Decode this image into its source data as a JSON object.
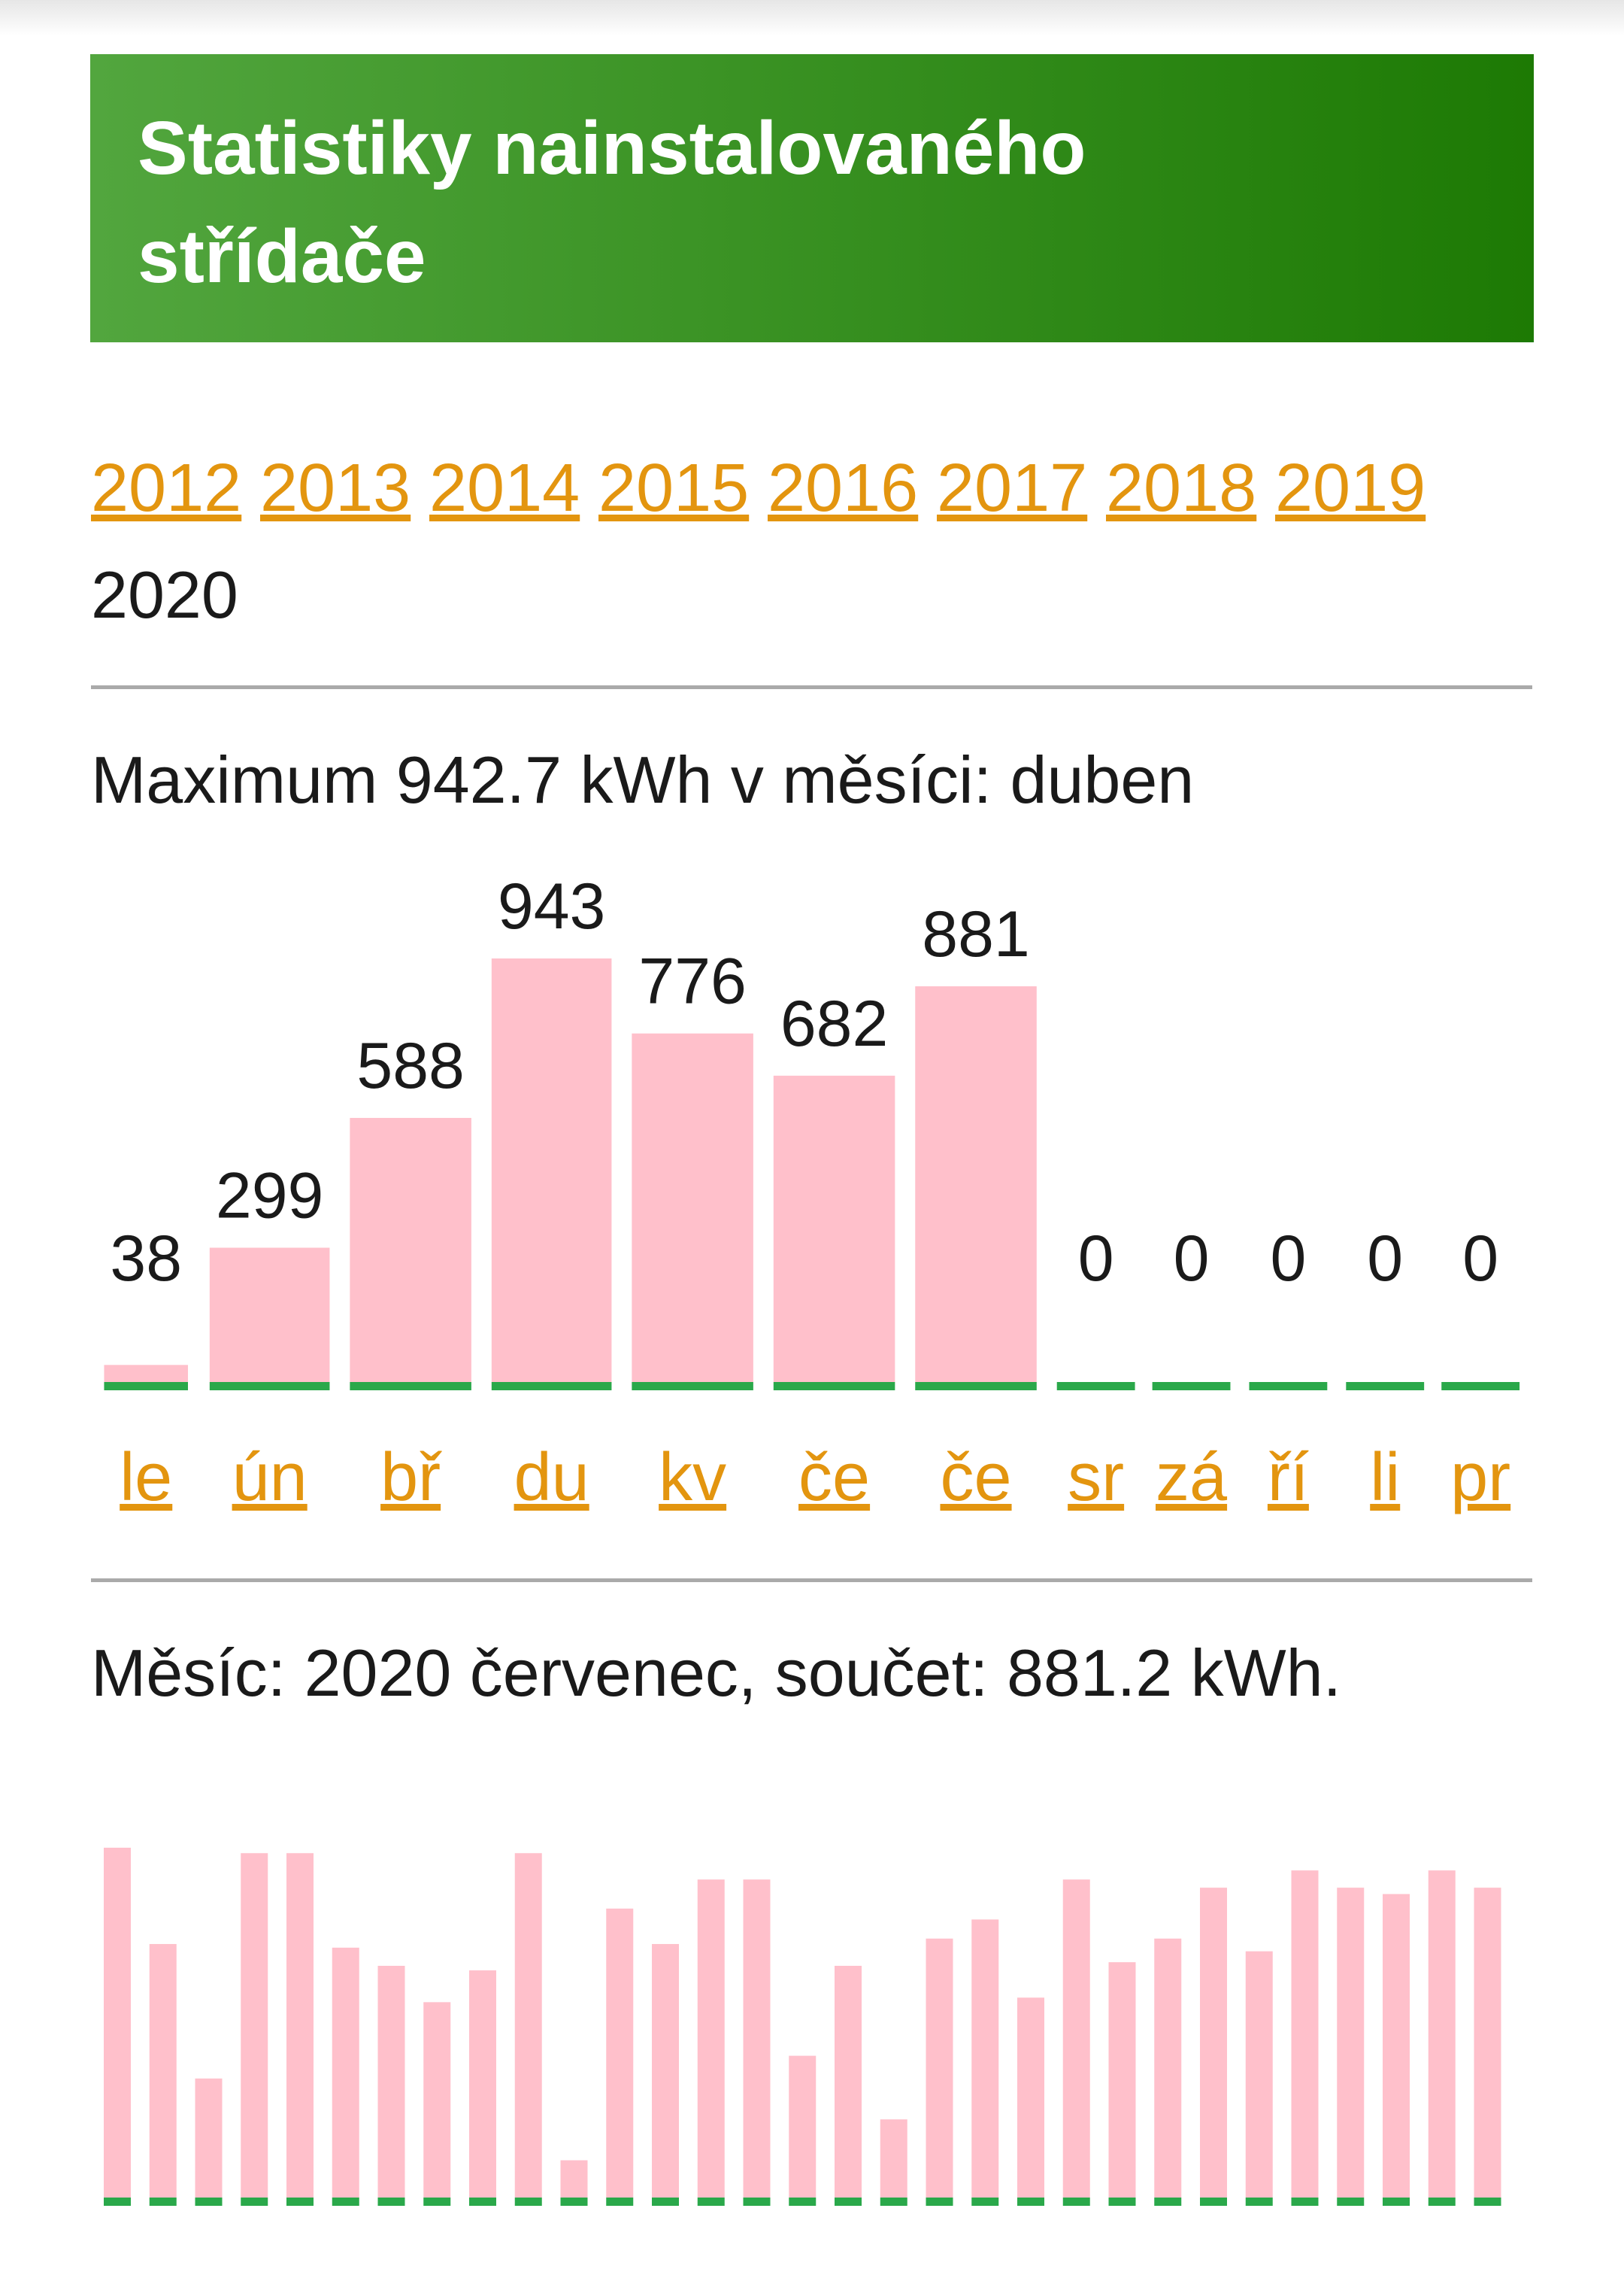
{
  "header": {
    "title": [
      "Statistiky nainstalovaného",
      "střídače"
    ]
  },
  "years": {
    "links": [
      "2012",
      "2013",
      "2014",
      "2015",
      "2016",
      "2017",
      "2018",
      "2019"
    ],
    "current": "2020"
  },
  "summary": "Maximum 942.7 kWh v měsíci: duben",
  "month_summary": "Měsíc: 2020 červenec, součet: 881.2 kWh.",
  "chart_data": [
    {
      "type": "bar",
      "categories": [
        "le",
        "ún",
        "bř",
        "du",
        "kv",
        "če",
        "če",
        "sr",
        "zá",
        "ří",
        "li",
        "pr"
      ],
      "values": [
        38,
        299,
        588,
        943,
        776,
        682,
        881,
        0,
        0,
        0,
        0,
        0
      ],
      "color": "#ffc0cb",
      "baseline_color": "#2aa84a",
      "ylim": [
        0,
        943
      ]
    },
    {
      "type": "bar",
      "values": [
        38.5,
        27.9,
        13.1,
        37.9,
        37.9,
        27.5,
        25.5,
        21.5,
        25.0,
        37.9,
        4.1,
        31.8,
        27.9,
        35.0,
        35.0,
        15.6,
        25.5,
        8.6,
        28.5,
        30.6,
        22.0,
        35.0,
        25.9,
        28.5,
        34.1,
        27.1,
        36.0,
        34.1,
        33.4,
        36.0,
        34.1
      ],
      "color": "#ffc0cb",
      "baseline_color": "#2aa84a",
      "ylim": [
        0,
        38.5
      ]
    }
  ]
}
